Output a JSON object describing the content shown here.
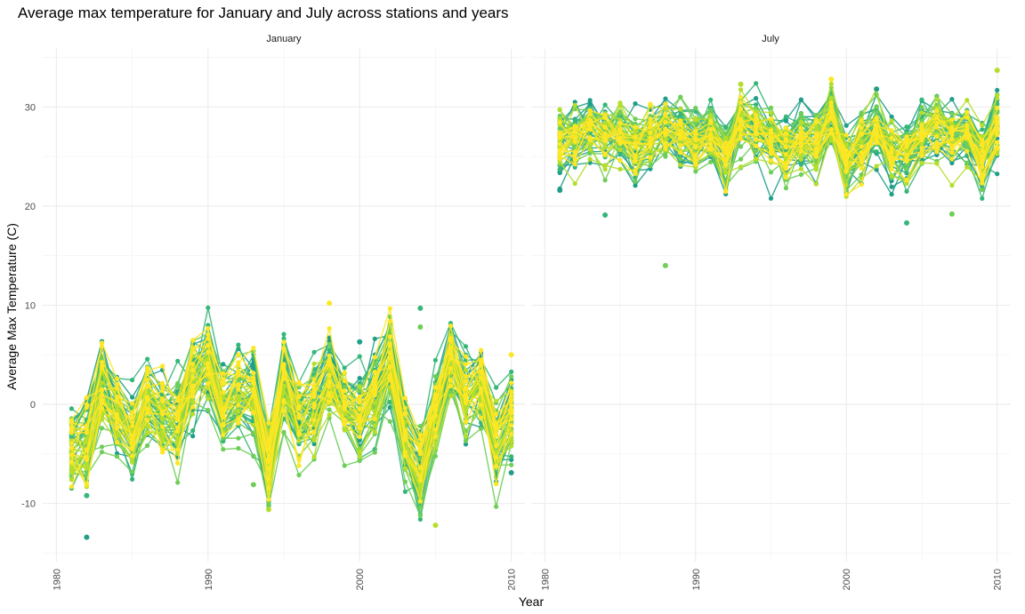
{
  "chart_data": {
    "type": "line",
    "title": "Average max temperature for January and July across stations and years",
    "xlabel": "Year",
    "ylabel": "Average Max Temperature (C)",
    "xlim": [
      1980,
      2010
    ],
    "ylim": [
      -15,
      35
    ],
    "x_ticks": [
      "1980",
      "1990",
      "2000",
      "2010"
    ],
    "y_ticks": [
      "-10",
      "0",
      "10",
      "20",
      "30"
    ],
    "grid": true,
    "legend": "none",
    "colors": [
      "#1f9e89",
      "#35b779",
      "#6ece58",
      "#b5de2b",
      "#fde725"
    ],
    "x": [
      1981,
      1982,
      1983,
      1984,
      1985,
      1986,
      1987,
      1988,
      1989,
      1990,
      1991,
      1992,
      1993,
      1994,
      1995,
      1996,
      1997,
      1998,
      1999,
      2000,
      2001,
      2002,
      2003,
      2004,
      2005,
      2006,
      2007,
      2008,
      2009,
      2010
    ],
    "panels": [
      {
        "name": "January",
        "series_mean": [
          -4.0,
          -3.5,
          1.5,
          -1.0,
          -3.0,
          0.5,
          -1.0,
          -1.5,
          3.0,
          4.5,
          -0.5,
          1.0,
          1.0,
          -6.0,
          2.5,
          -1.5,
          -0.5,
          3.0,
          0.0,
          -1.5,
          1.0,
          4.5,
          -3.5,
          -7.0,
          -1.0,
          4.5,
          1.0,
          2.0,
          -4.0,
          -1.0
        ],
        "spread": 2.5,
        "outliers": [
          {
            "x": 1982,
            "y": -13.4
          },
          {
            "x": 1982,
            "y": -9.2
          },
          {
            "x": 1993,
            "y": -8.1
          },
          {
            "x": 1994,
            "y": -10.6
          },
          {
            "x": 1998,
            "y": 10.2
          },
          {
            "x": 2000,
            "y": 6.3
          },
          {
            "x": 2004,
            "y": 9.7
          },
          {
            "x": 2004,
            "y": 7.8
          },
          {
            "x": 2005,
            "y": -12.2
          },
          {
            "x": 2010,
            "y": 5.0
          },
          {
            "x": 2010,
            "y": -6.9
          }
        ]
      },
      {
        "name": "July",
        "series_mean": [
          26.5,
          27.0,
          28.0,
          27.0,
          27.5,
          26.0,
          27.0,
          28.0,
          27.5,
          26.5,
          27.5,
          25.0,
          28.5,
          28.0,
          27.0,
          26.0,
          27.0,
          26.5,
          29.0,
          24.5,
          26.0,
          28.0,
          25.5,
          25.5,
          27.0,
          28.0,
          27.0,
          27.5,
          25.0,
          28.0
        ],
        "spread": 2.0,
        "outliers": [
          {
            "x": 1981,
            "y": 21.6
          },
          {
            "x": 1984,
            "y": 19.1
          },
          {
            "x": 1988,
            "y": 14.0
          },
          {
            "x": 1993,
            "y": 32.3
          },
          {
            "x": 1999,
            "y": 32.8
          },
          {
            "x": 2002,
            "y": 31.8
          },
          {
            "x": 2004,
            "y": 18.3
          },
          {
            "x": 2007,
            "y": 19.2
          },
          {
            "x": 2010,
            "y": 33.7
          }
        ]
      }
    ],
    "num_stations": 60
  }
}
